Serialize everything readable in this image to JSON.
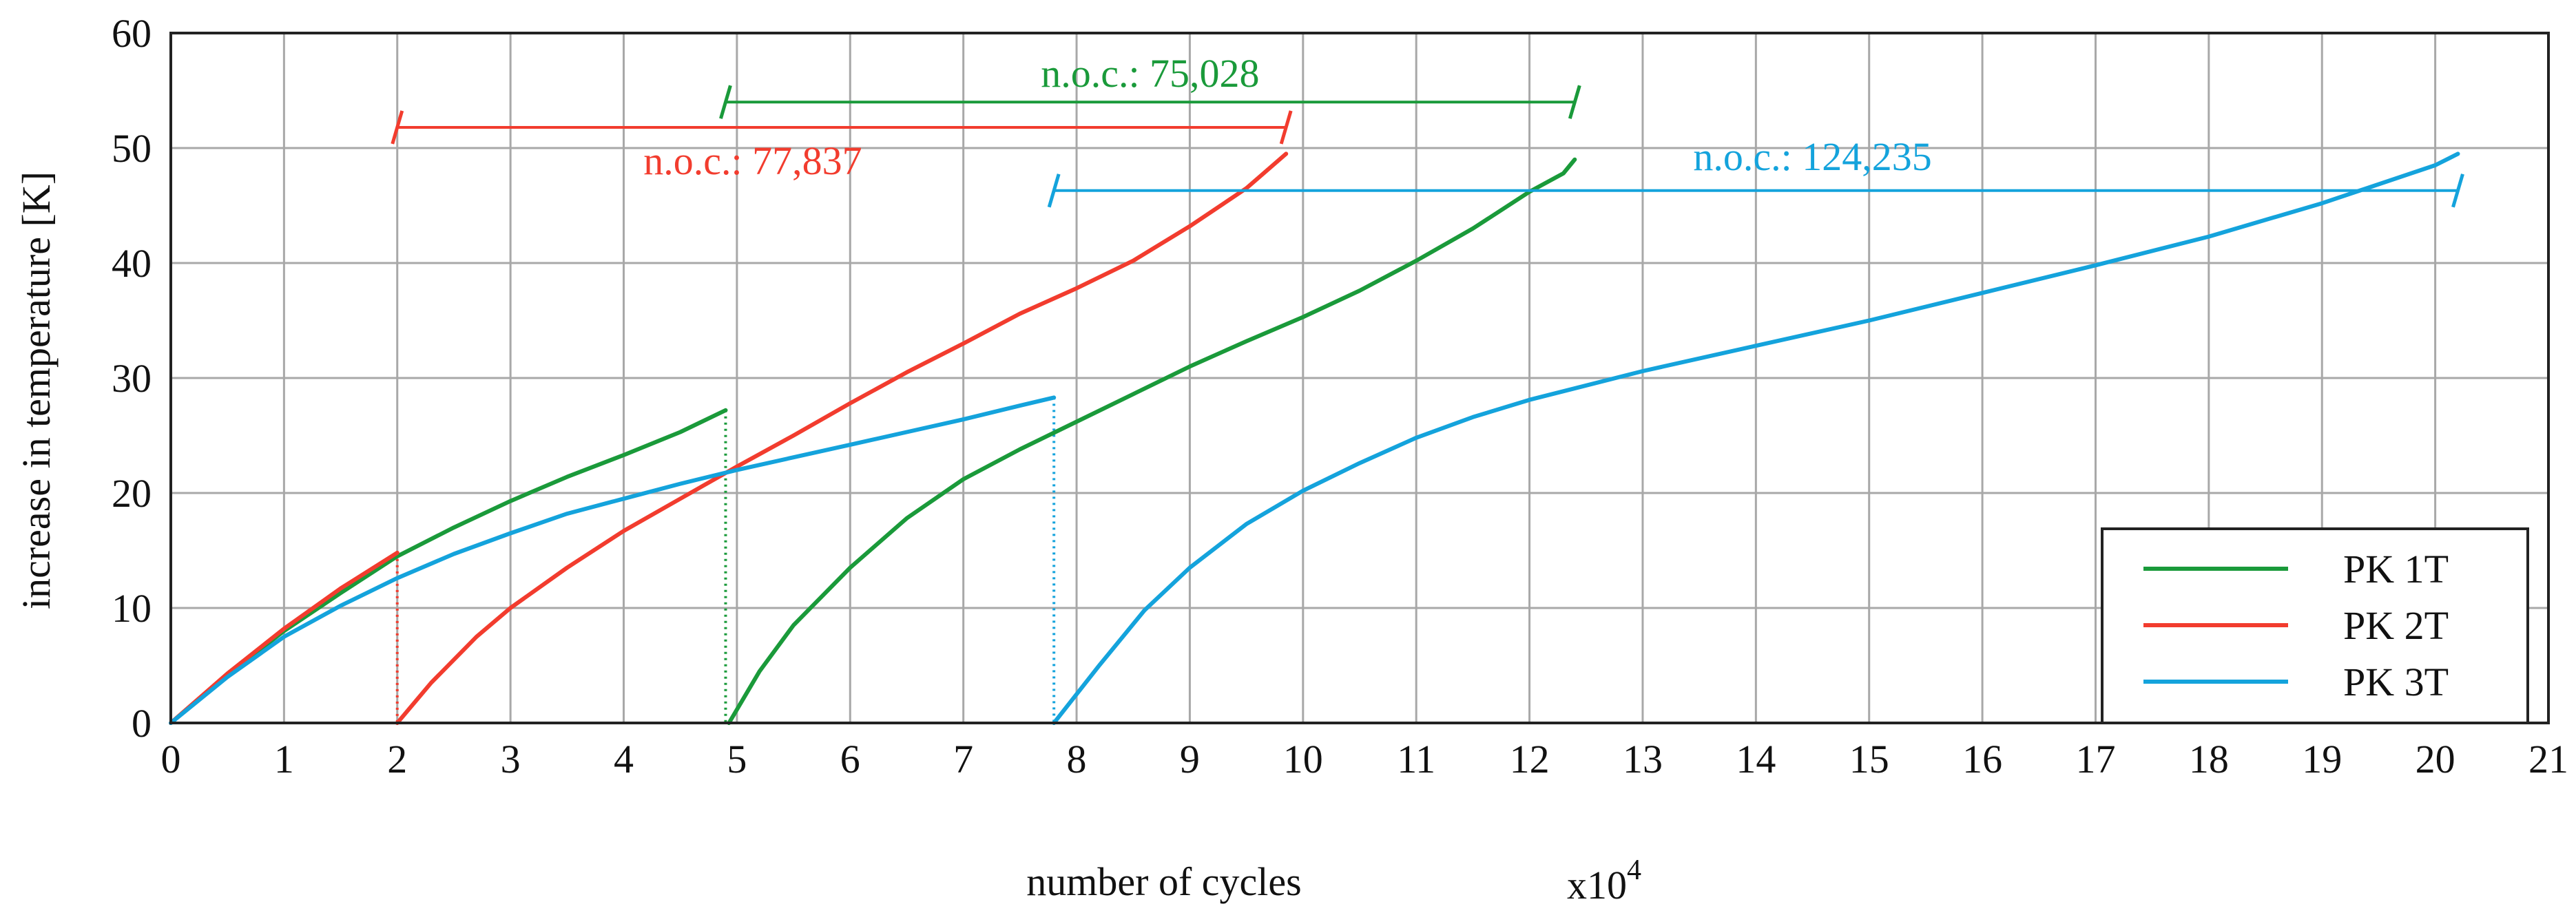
{
  "chart_data": {
    "type": "line",
    "title": "",
    "xlabel": "number of cycles",
    "xscale_label_base": "x10",
    "xscale_label_exp": "4",
    "ylabel": "increase in temperature [K]",
    "xlim": [
      0,
      21
    ],
    "ylim": [
      0,
      60
    ],
    "xticks": [
      "0",
      "1",
      "2",
      "3",
      "4",
      "5",
      "6",
      "7",
      "8",
      "9",
      "10",
      "11",
      "12",
      "13",
      "14",
      "15",
      "16",
      "17",
      "18",
      "19",
      "20",
      "21"
    ],
    "yticks": [
      "0",
      "10",
      "20",
      "30",
      "40",
      "50",
      "60"
    ],
    "grid": true,
    "legend_position": "bottom-right",
    "series": [
      {
        "name": "PK 1T",
        "color": "#1a9a3a",
        "segments": [
          {
            "x": [
              0,
              0.5,
              1,
              1.5,
              2,
              2.5,
              3,
              3.5,
              4,
              4.5,
              4.9
            ],
            "y": [
              0,
              4.2,
              8.0,
              11.3,
              14.5,
              17.0,
              19.3,
              21.4,
              23.3,
              25.3,
              27.2
            ]
          },
          {
            "x": [
              4.93,
              5.2,
              5.5,
              6,
              6.5,
              7,
              7.5,
              8,
              8.5,
              9,
              9.5,
              10,
              10.5,
              11,
              11.5,
              12,
              12.3,
              12.4
            ],
            "y": [
              0,
              4.5,
              8.5,
              13.5,
              17.8,
              21.2,
              23.8,
              26.2,
              28.6,
              31.0,
              33.2,
              35.3,
              37.6,
              40.2,
              43.0,
              46.2,
              47.8,
              49.0
            ]
          }
        ],
        "drops": [
          {
            "x": 4.9,
            "y_from": 27.2,
            "y_to": 0
          }
        ]
      },
      {
        "name": "PK 2T",
        "color": "#f23c2e",
        "segments": [
          {
            "x": [
              0,
              0.5,
              1,
              1.5,
              2.0
            ],
            "y": [
              0,
              4.3,
              8.2,
              11.7,
              14.8
            ]
          },
          {
            "x": [
              2.0,
              2.3,
              2.7,
              3,
              3.5,
              4,
              4.5,
              5,
              5.5,
              6,
              6.5,
              7,
              7.5,
              8,
              8.5,
              9,
              9.5,
              9.85
            ],
            "y": [
              0,
              3.5,
              7.5,
              10.0,
              13.5,
              16.7,
              19.5,
              22.3,
              25.0,
              27.8,
              30.5,
              33.0,
              35.6,
              37.8,
              40.2,
              43.2,
              46.5,
              49.5
            ]
          }
        ],
        "drops": [
          {
            "x": 2.0,
            "y_from": 14.8,
            "y_to": 0
          }
        ]
      },
      {
        "name": "PK 3T",
        "color": "#14a3dc",
        "segments": [
          {
            "x": [
              0,
              0.5,
              1,
              1.5,
              2,
              2.5,
              3,
              3.5,
              4,
              4.5,
              5,
              5.5,
              6,
              6.5,
              7,
              7.5,
              7.8
            ],
            "y": [
              0,
              4.0,
              7.5,
              10.2,
              12.6,
              14.7,
              16.5,
              18.2,
              19.5,
              20.8,
              22.0,
              23.1,
              24.2,
              25.3,
              26.4,
              27.6,
              28.3
            ]
          },
          {
            "x": [
              7.8,
              8.2,
              8.6,
              9,
              9.5,
              10,
              10.5,
              11,
              11.5,
              12,
              13,
              14,
              15,
              16,
              17,
              18,
              19,
              20,
              20.2
            ],
            "y": [
              0,
              5.0,
              9.8,
              13.5,
              17.3,
              20.2,
              22.6,
              24.8,
              26.6,
              28.1,
              30.6,
              32.8,
              35.0,
              37.4,
              39.8,
              42.3,
              45.2,
              48.5,
              49.5
            ]
          }
        ],
        "drops": [
          {
            "x": 7.8,
            "y_from": 28.3,
            "y_to": 0
          }
        ]
      }
    ],
    "annotations": [
      {
        "label": "n.o.c.: 75,028",
        "color": "#1a9a3a",
        "x_start": 4.9,
        "x_end": 12.4,
        "y": 54.0
      },
      {
        "label": "n.o.c.: 77,837",
        "color": "#f23c2e",
        "x_start": 2.0,
        "x_end": 9.85,
        "y": 51.8
      },
      {
        "label": "n.o.c.: 124,235",
        "color": "#14a3dc",
        "x_start": 7.8,
        "x_end": 20.2,
        "y": 46.3
      }
    ]
  }
}
